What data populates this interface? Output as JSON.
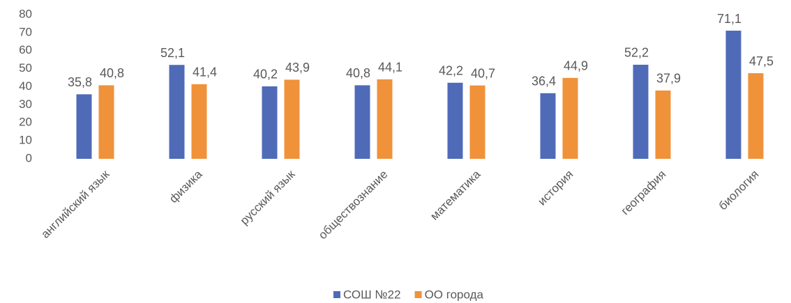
{
  "chart_data": {
    "type": "bar",
    "categories": [
      "английский язык",
      "физика",
      "русский язык",
      "обществознание",
      "математика",
      "история",
      "география",
      "биология"
    ],
    "series": [
      {
        "name": "СОШ №22",
        "color": "#4f6bb8",
        "values": [
          35.8,
          52.1,
          40.2,
          40.8,
          42.2,
          36.4,
          52.2,
          71.1
        ],
        "value_labels": [
          "35,8",
          "52,1",
          "40,2",
          "40,8",
          "42,2",
          "36,4",
          "52,2",
          "71,1"
        ]
      },
      {
        "name": "ОО города",
        "color": "#f0923a",
        "values": [
          40.8,
          41.4,
          43.9,
          44.1,
          40.7,
          44.9,
          37.9,
          47.5
        ],
        "value_labels": [
          "40,8",
          "41,4",
          "43,9",
          "44,1",
          "40,7",
          "44,9",
          "37,9",
          "47,5"
        ]
      }
    ],
    "ylim": [
      0,
      80
    ],
    "yticks": [
      0,
      10,
      20,
      30,
      40,
      50,
      60,
      70,
      80
    ],
    "grid": false,
    "legend": "bottom"
  }
}
